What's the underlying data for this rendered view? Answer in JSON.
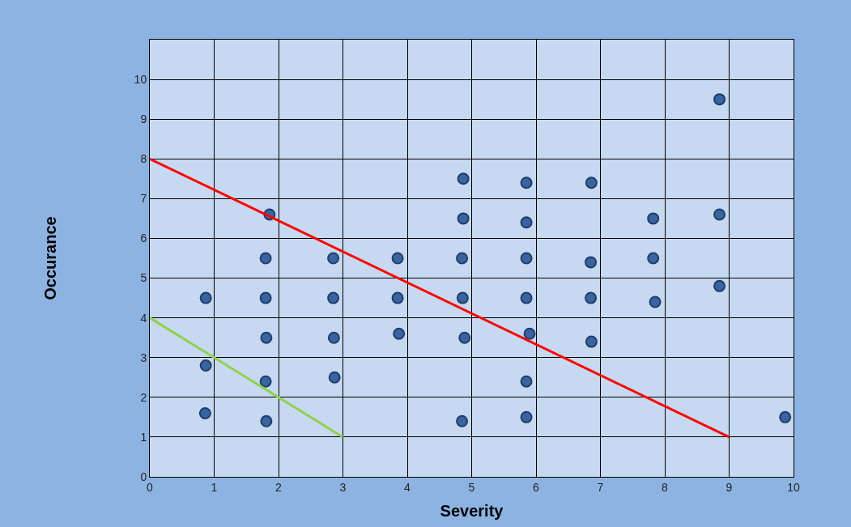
{
  "chart_data": {
    "type": "scatter",
    "xlabel": "Severity",
    "ylabel": "Occurance",
    "xlim": [
      0,
      10
    ],
    "ylim": [
      0,
      11
    ],
    "xticks": [
      0,
      1,
      2,
      3,
      4,
      5,
      6,
      7,
      8,
      9,
      10
    ],
    "yticks": [
      0,
      1,
      2,
      3,
      4,
      5,
      6,
      7,
      8,
      9,
      10,
      {
        "value": 11,
        "label": null
      }
    ],
    "grid": true,
    "series": [
      {
        "marker": "circle",
        "color": "#3a64a0",
        "x": [
          8.85,
          4.87,
          5.85,
          6.86,
          1.86,
          4.87,
          5.85,
          7.82,
          8.85,
          1.8,
          2.85,
          3.85,
          4.85,
          5.85,
          6.85,
          7.82,
          0.87,
          1.8,
          2.85,
          3.85,
          4.86,
          5.85,
          6.85,
          7.85,
          8.85,
          1.81,
          2.86,
          3.87,
          4.89,
          5.9,
          6.86,
          0.87,
          1.8,
          2.87,
          5.85,
          0.86,
          1.81,
          4.85,
          5.85,
          9.87
        ],
        "values": [
          9.5,
          7.5,
          7.4,
          7.4,
          6.6,
          6.5,
          6.4,
          6.5,
          6.6,
          5.5,
          5.5,
          5.5,
          5.5,
          5.5,
          5.4,
          5.5,
          4.5,
          4.5,
          4.5,
          4.5,
          4.5,
          4.5,
          4.5,
          4.4,
          4.8,
          3.5,
          3.5,
          3.6,
          3.5,
          3.6,
          3.4,
          2.8,
          2.4,
          2.5,
          2.4,
          1.6,
          1.4,
          1.4,
          1.5,
          1.5
        ]
      },
      {
        "type": "line",
        "marker": "none",
        "color": "#ff0000",
        "x": [
          0,
          9
        ],
        "values": [
          8,
          1
        ]
      },
      {
        "type": "line",
        "marker": "none",
        "color": "#92d050",
        "x": [
          0,
          3
        ],
        "values": [
          4,
          1
        ]
      }
    ]
  }
}
